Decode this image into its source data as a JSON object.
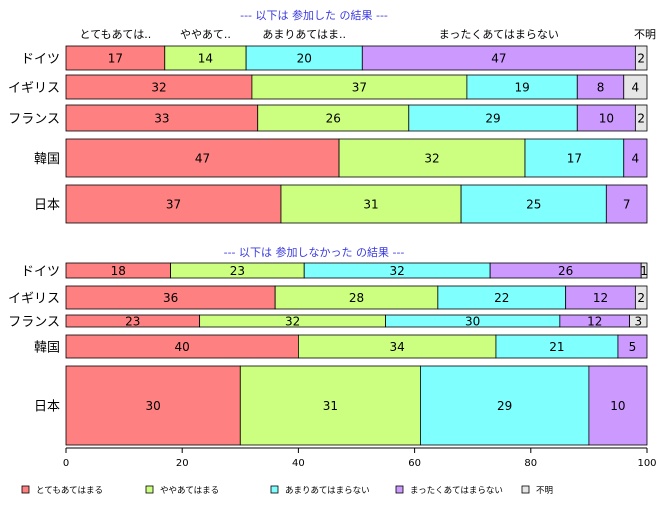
{
  "chart_data": [
    {
      "type": "bar",
      "orientation": "horizontal",
      "stacked": true,
      "title": "--- 以下は 参加した の結果 ---",
      "column_headers": [
        "とてもあては..",
        "ややあて..",
        "あまりあてはま..",
        "まったくあてはまらない",
        "不明"
      ],
      "categories": [
        "ドイツ",
        "イギリス",
        "フランス",
        "韓国",
        "日本"
      ],
      "series": [
        {
          "name": "とてもあてはまる",
          "values": [
            17,
            32,
            33,
            47,
            37
          ],
          "color": "#ff8080"
        },
        {
          "name": "ややあてはまる",
          "values": [
            14,
            37,
            26,
            32,
            31
          ],
          "color": "#ccff80"
        },
        {
          "name": "あまりあてはまらない",
          "values": [
            20,
            19,
            29,
            17,
            25
          ],
          "color": "#80ffff"
        },
        {
          "name": "まったくあてはまらない",
          "values": [
            47,
            8,
            10,
            4,
            7
          ],
          "color": "#cc99ff"
        },
        {
          "name": "不明",
          "values": [
            2,
            4,
            2,
            0,
            0
          ],
          "color": "#e6e6e6"
        }
      ]
    },
    {
      "type": "bar",
      "orientation": "horizontal",
      "stacked": true,
      "title": "--- 以下は 参加しなかった の結果 ---",
      "categories": [
        "ドイツ",
        "イギリス",
        "フランス",
        "韓国",
        "日本"
      ],
      "series": [
        {
          "name": "とてもあてはまる",
          "values": [
            18,
            36,
            23,
            40,
            30
          ],
          "color": "#ff8080"
        },
        {
          "name": "ややあてはまる",
          "values": [
            23,
            28,
            32,
            34,
            31
          ],
          "color": "#ccff80"
        },
        {
          "name": "あまりあてはまらない",
          "values": [
            32,
            22,
            30,
            21,
            29
          ],
          "color": "#80ffff"
        },
        {
          "name": "まったくあてはまらない",
          "values": [
            26,
            12,
            12,
            5,
            10
          ],
          "color": "#cc99ff"
        },
        {
          "name": "不明",
          "values": [
            1,
            2,
            3,
            0,
            0
          ],
          "color": "#e6e6e6"
        }
      ]
    }
  ],
  "axis": {
    "xlim": [
      0,
      100
    ],
    "ticks": [
      "0",
      "20",
      "40",
      "60",
      "80",
      "100"
    ]
  },
  "legend": {
    "placement": "bottom",
    "items": [
      {
        "label": "とてもあてはまる",
        "color": "#ff8080"
      },
      {
        "label": "ややあてはまる",
        "color": "#ccff80"
      },
      {
        "label": "あまりあてはまらない",
        "color": "#80ffff"
      },
      {
        "label": "まったくあてはまらない",
        "color": "#cc99ff"
      },
      {
        "label": "不明",
        "color": "#e6e6e6"
      }
    ]
  }
}
